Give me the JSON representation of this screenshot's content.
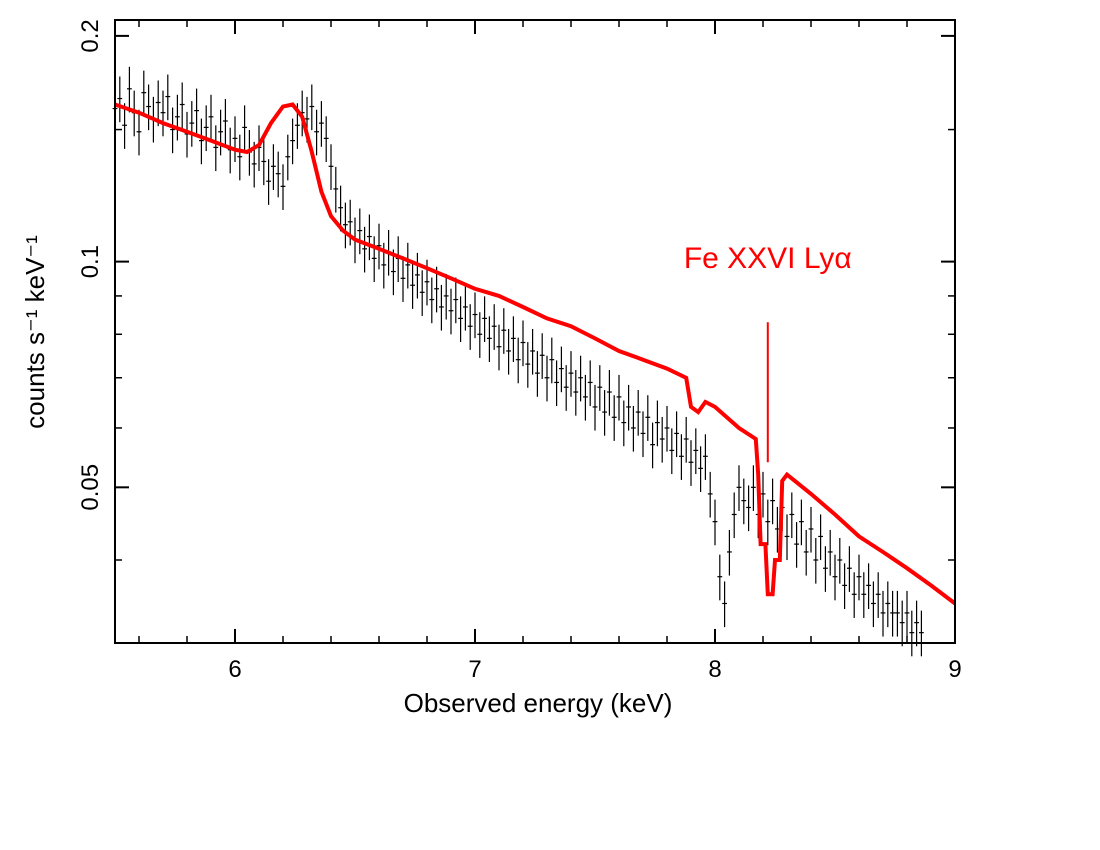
{
  "chart_data": {
    "type": "scatter",
    "title": "",
    "xlabel": "Observed energy (keV)",
    "ylabel": "counts s⁻¹ keV⁻¹",
    "xscale": "linear",
    "yscale": "log",
    "xlim": [
      5.5,
      9.0
    ],
    "ylim": [
      0.031,
      0.21
    ],
    "x_ticks": [
      6,
      7,
      8,
      9
    ],
    "x_tick_labels": [
      "6",
      "7",
      "8",
      "9"
    ],
    "y_ticks": [
      0.05,
      0.1,
      0.2
    ],
    "y_tick_labels": [
      "0.05",
      "0.1",
      "0.2"
    ],
    "grid": false,
    "series": [
      {
        "name": "data",
        "style": "errorbars",
        "color": "#000000",
        "x_error_half_width_keV": 0.01,
        "relative_y_error": 0.07,
        "x_start": 5.5,
        "x_step": 0.02,
        "y": [
          0.16,
          0.165,
          0.152,
          0.17,
          0.158,
          0.149,
          0.168,
          0.161,
          0.155,
          0.163,
          0.158,
          0.166,
          0.15,
          0.156,
          0.162,
          0.148,
          0.153,
          0.159,
          0.145,
          0.151,
          0.156,
          0.142,
          0.149,
          0.154,
          0.141,
          0.146,
          0.138,
          0.151,
          0.14,
          0.135,
          0.142,
          0.136,
          0.128,
          0.134,
          0.131,
          0.126,
          0.138,
          0.145,
          0.152,
          0.158,
          0.155,
          0.161,
          0.149,
          0.153,
          0.146,
          0.134,
          0.125,
          0.118,
          0.112,
          0.113,
          0.107,
          0.11,
          0.104,
          0.108,
          0.101,
          0.105,
          0.099,
          0.103,
          0.097,
          0.101,
          0.095,
          0.099,
          0.093,
          0.096,
          0.091,
          0.094,
          0.089,
          0.092,
          0.087,
          0.09,
          0.086,
          0.089,
          0.084,
          0.087,
          0.082,
          0.085,
          0.08,
          0.084,
          0.079,
          0.082,
          0.077,
          0.081,
          0.076,
          0.079,
          0.074,
          0.078,
          0.073,
          0.076,
          0.071,
          0.075,
          0.07,
          0.074,
          0.069,
          0.072,
          0.068,
          0.071,
          0.067,
          0.07,
          0.066,
          0.069,
          0.064,
          0.068,
          0.063,
          0.067,
          0.062,
          0.066,
          0.061,
          0.064,
          0.06,
          0.063,
          0.059,
          0.062,
          0.057,
          0.061,
          0.058,
          0.06,
          0.056,
          0.059,
          0.055,
          0.058,
          0.054,
          0.056,
          0.053,
          0.055,
          0.049,
          0.045,
          0.038,
          0.035,
          0.041,
          0.046,
          0.05,
          0.048,
          0.047,
          0.05,
          0.046,
          0.049,
          0.045,
          0.048,
          0.044,
          0.047,
          0.043,
          0.046,
          0.042,
          0.045,
          0.041,
          0.044,
          0.04,
          0.043,
          0.039,
          0.041,
          0.038,
          0.04,
          0.037,
          0.039,
          0.036,
          0.038,
          0.036,
          0.037,
          0.035,
          0.036,
          0.034,
          0.035,
          0.034,
          0.034,
          0.033,
          0.034,
          0.032,
          0.033,
          0.032
        ]
      },
      {
        "name": "model",
        "style": "line",
        "color": "#ff0000",
        "points": [
          [
            5.5,
            0.162
          ],
          [
            5.6,
            0.158
          ],
          [
            5.7,
            0.153
          ],
          [
            5.8,
            0.149
          ],
          [
            5.9,
            0.145
          ],
          [
            6.0,
            0.141
          ],
          [
            6.05,
            0.14
          ],
          [
            6.1,
            0.143
          ],
          [
            6.15,
            0.153
          ],
          [
            6.2,
            0.161
          ],
          [
            6.24,
            0.162
          ],
          [
            6.28,
            0.156
          ],
          [
            6.32,
            0.14
          ],
          [
            6.36,
            0.124
          ],
          [
            6.4,
            0.115
          ],
          [
            6.45,
            0.11
          ],
          [
            6.5,
            0.107
          ],
          [
            6.6,
            0.104
          ],
          [
            6.7,
            0.101
          ],
          [
            6.8,
            0.098
          ],
          [
            6.9,
            0.095
          ],
          [
            7.0,
            0.092
          ],
          [
            7.1,
            0.09
          ],
          [
            7.2,
            0.087
          ],
          [
            7.3,
            0.084
          ],
          [
            7.4,
            0.082
          ],
          [
            7.5,
            0.079
          ],
          [
            7.6,
            0.076
          ],
          [
            7.7,
            0.074
          ],
          [
            7.8,
            0.072
          ],
          [
            7.88,
            0.07
          ],
          [
            7.9,
            0.064
          ],
          [
            7.93,
            0.063
          ],
          [
            7.96,
            0.065
          ],
          [
            8.0,
            0.064
          ],
          [
            8.1,
            0.06
          ],
          [
            8.17,
            0.058
          ],
          [
            8.18,
            0.052
          ],
          [
            8.19,
            0.042
          ],
          [
            8.21,
            0.042
          ],
          [
            8.22,
            0.036
          ],
          [
            8.24,
            0.036
          ],
          [
            8.25,
            0.04
          ],
          [
            8.27,
            0.04
          ],
          [
            8.28,
            0.051
          ],
          [
            8.3,
            0.052
          ],
          [
            8.4,
            0.049
          ],
          [
            8.5,
            0.046
          ],
          [
            8.6,
            0.043
          ],
          [
            8.7,
            0.041
          ],
          [
            8.8,
            0.039
          ],
          [
            8.9,
            0.037
          ],
          [
            9.0,
            0.035
          ]
        ]
      }
    ],
    "annotations": [
      {
        "text": "Fe XXVI Lyα",
        "x": 8.22,
        "y_text": 0.098,
        "line_from_y": 0.083,
        "line_to_y": 0.054,
        "color": "#ff0000"
      }
    ]
  }
}
